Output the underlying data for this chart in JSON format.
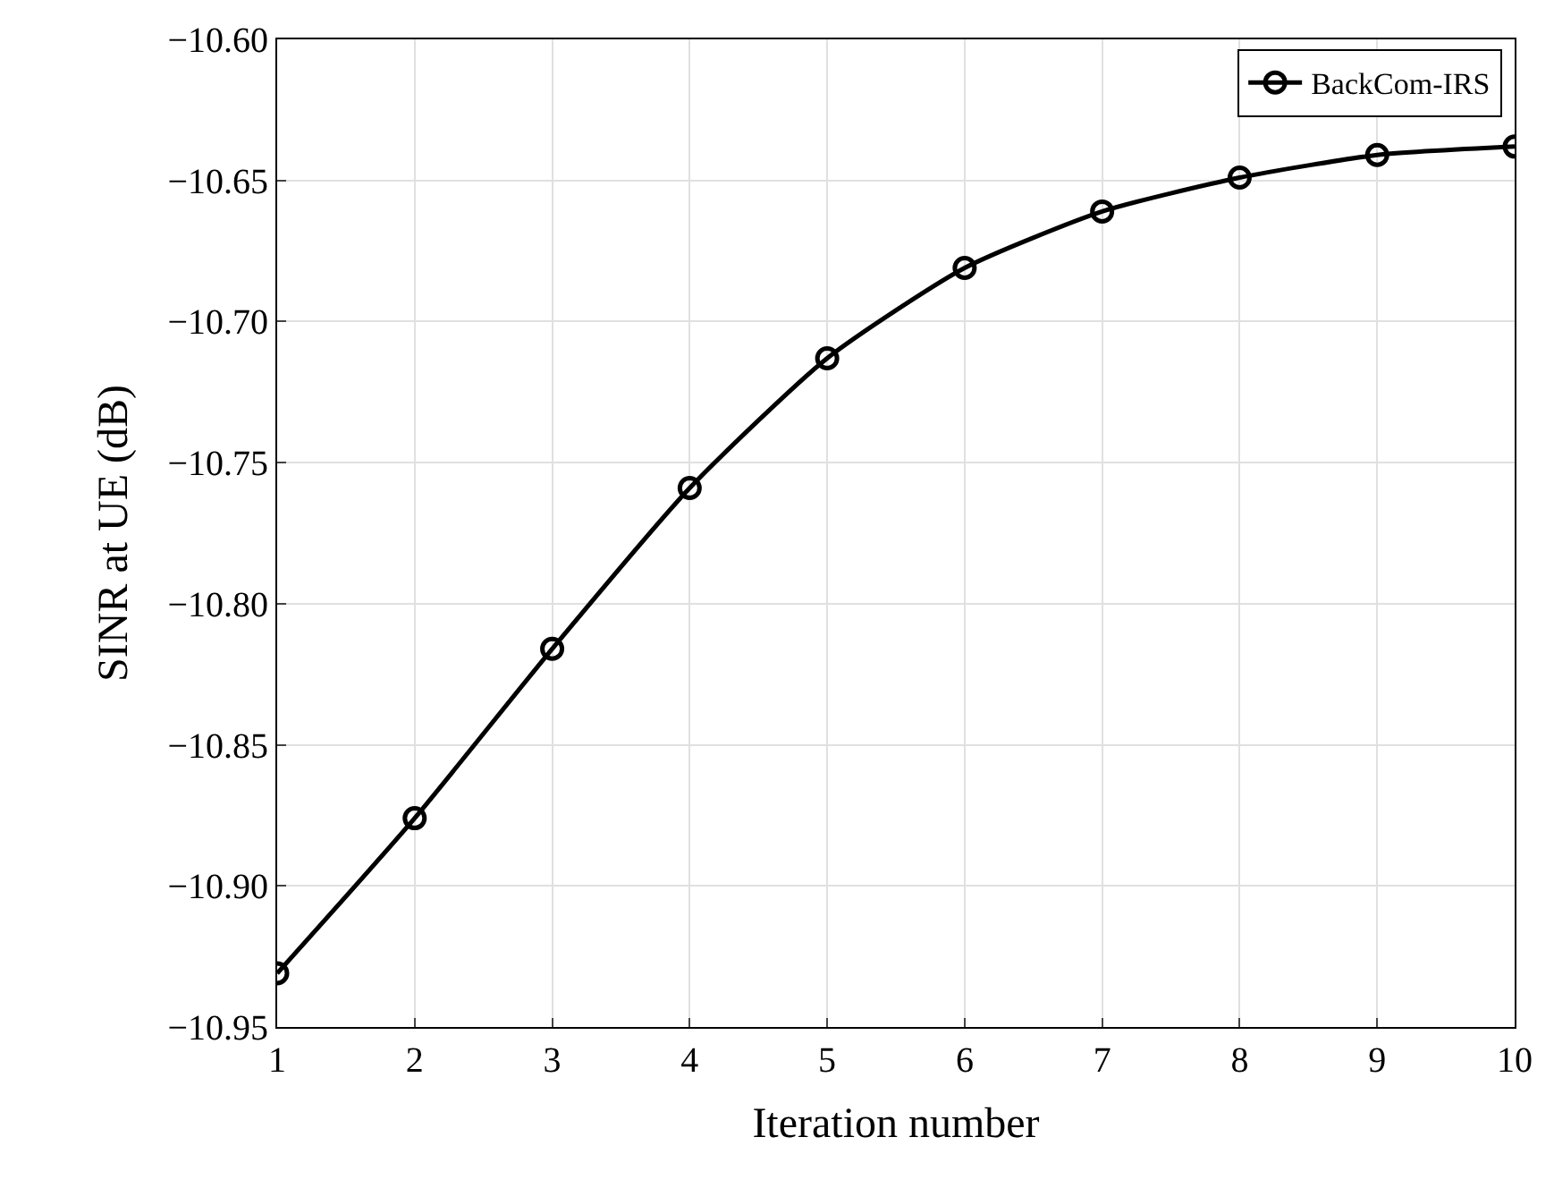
{
  "chart_data": {
    "type": "line",
    "xlabel": "Iteration number",
    "ylabel": "SINR at UE (dB)",
    "x": [
      1,
      2,
      3,
      4,
      5,
      6,
      7,
      8,
      9,
      10
    ],
    "series": [
      {
        "name": "BackCom-IRS",
        "color": "#000000",
        "values": [
          -10.931,
          -10.876,
          -10.816,
          -10.759,
          -10.713,
          -10.681,
          -10.661,
          -10.649,
          -10.641,
          -10.638
        ]
      }
    ],
    "xlim": [
      1,
      10
    ],
    "xticks": [
      1,
      2,
      3,
      4,
      5,
      6,
      7,
      8,
      9,
      10
    ],
    "ylim": [
      -10.95,
      -10.6
    ],
    "yticks": [
      {
        "value": -10.95,
        "label": "−10.95"
      },
      {
        "value": -10.9,
        "label": "−10.90"
      },
      {
        "value": -10.85,
        "label": "−10.85"
      },
      {
        "value": -10.8,
        "label": "−10.80"
      },
      {
        "value": -10.75,
        "label": "−10.75"
      },
      {
        "value": -10.7,
        "label": "−10.70"
      },
      {
        "value": -10.65,
        "label": "−10.65"
      },
      {
        "value": -10.6,
        "label": "−10.60"
      }
    ],
    "grid": true,
    "legend": "top right",
    "marker": "circle",
    "line_style": "solid"
  }
}
